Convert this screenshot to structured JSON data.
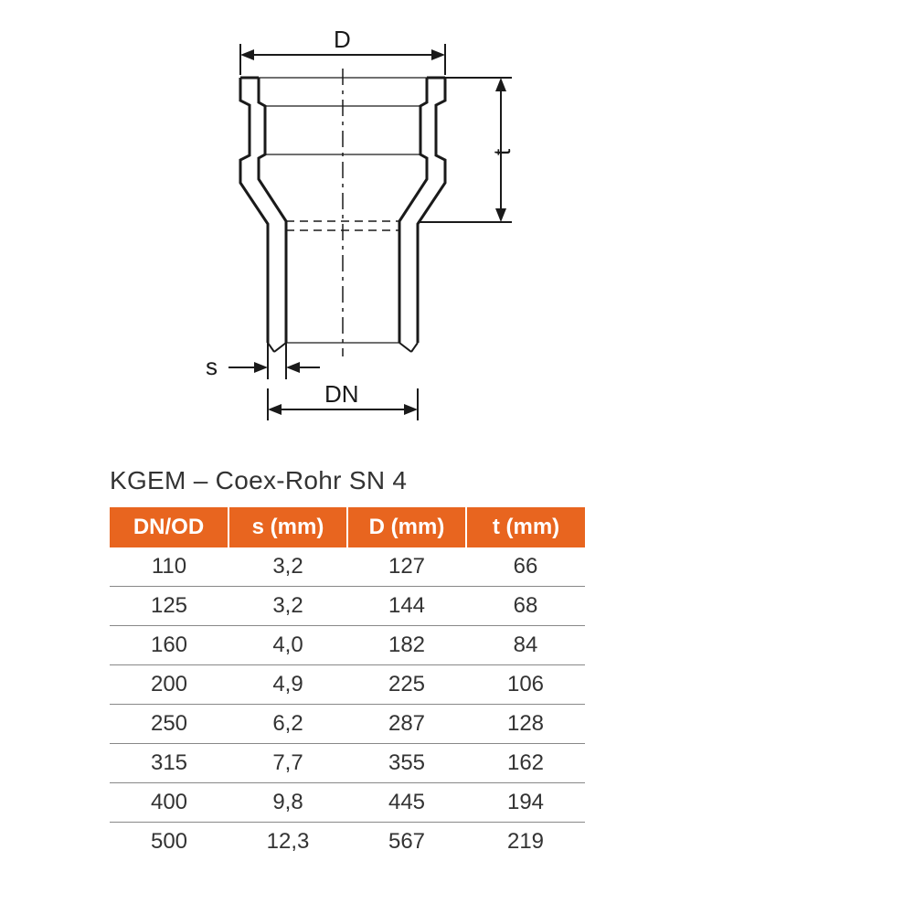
{
  "diagram": {
    "labels": {
      "D": "D",
      "t": "t",
      "s": "s",
      "DN": "DN"
    },
    "colors": {
      "stroke": "#1a1a1a",
      "background": "#ffffff"
    },
    "line_width_thick": 3,
    "line_width_thin": 2
  },
  "table": {
    "title": "KGEM – Coex-Rohr SN 4",
    "header_bg": "#e8651f",
    "header_fg": "#ffffff",
    "row_border": "#888888",
    "cell_fg": "#333333",
    "title_fontsize": 28,
    "header_fontsize": 24,
    "cell_fontsize": 24,
    "columns": [
      "DN/OD",
      "s (mm)",
      "D (mm)",
      "t (mm)"
    ],
    "rows": [
      [
        "110",
        "3,2",
        "127",
        "66"
      ],
      [
        "125",
        "3,2",
        "144",
        "68"
      ],
      [
        "160",
        "4,0",
        "182",
        "84"
      ],
      [
        "200",
        "4,9",
        "225",
        "106"
      ],
      [
        "250",
        "6,2",
        "287",
        "128"
      ],
      [
        "315",
        "7,7",
        "355",
        "162"
      ],
      [
        "400",
        "9,8",
        "445",
        "194"
      ],
      [
        "500",
        "12,3",
        "567",
        "219"
      ]
    ]
  }
}
